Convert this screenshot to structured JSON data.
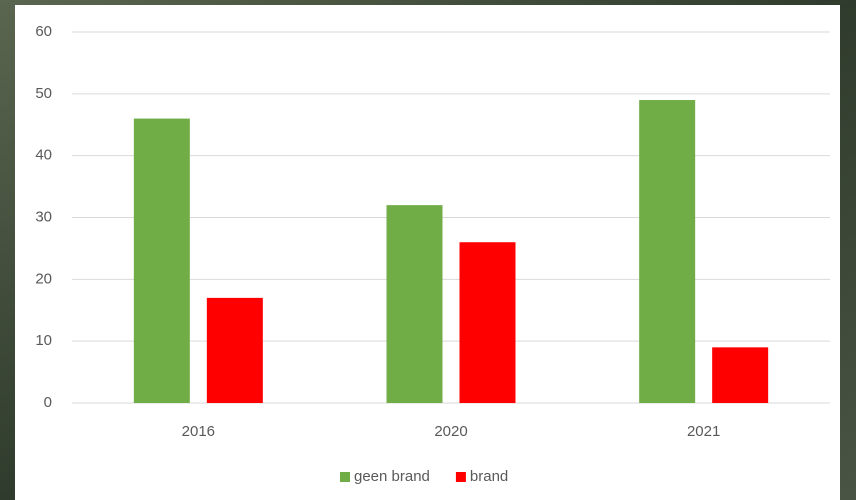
{
  "chart_data": {
    "type": "bar",
    "categories": [
      "2016",
      "2020",
      "2021"
    ],
    "series": [
      {
        "name": "geen brand",
        "color": "#70ad47",
        "values": [
          46,
          32,
          49
        ]
      },
      {
        "name": "brand",
        "color": "#ff0000",
        "values": [
          17,
          26,
          9
        ]
      }
    ],
    "ylim": [
      0,
      60
    ],
    "yticks": [
      0,
      10,
      20,
      30,
      40,
      50,
      60
    ],
    "grid": true,
    "legend": "bottom"
  }
}
